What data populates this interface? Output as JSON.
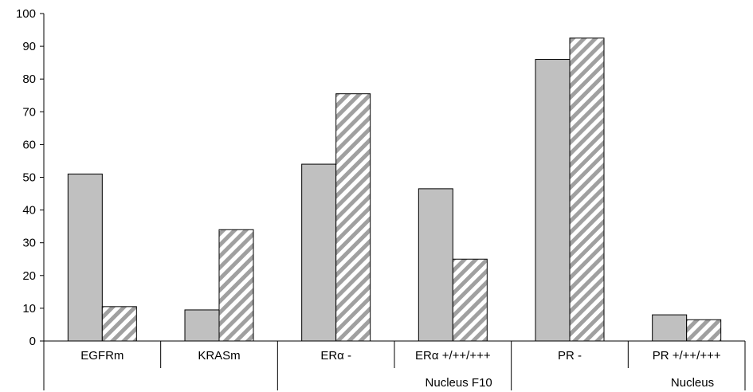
{
  "chart_data": {
    "type": "bar",
    "categories": [
      "EGFRm",
      "KRASm",
      "ERα -",
      "ERα +/++/+++",
      "PR -",
      "PR +/++/+++"
    ],
    "groups": [
      {
        "label": "",
        "categories": [
          "EGFRm",
          "KRASm"
        ]
      },
      {
        "label": "Nucleus F10",
        "categories": [
          "ERα -",
          "ERα +/++/+++"
        ]
      },
      {
        "label": "Nucleus",
        "categories": [
          "PR -",
          "PR +/++/+++"
        ]
      }
    ],
    "series": [
      {
        "values": [
          51,
          9.5,
          54,
          46.5,
          86,
          8
        ],
        "color": "#c0c0c0",
        "pattern": "solid"
      },
      {
        "values": [
          10.5,
          34,
          75.5,
          25,
          92.5,
          6.5
        ],
        "color": "#a0a0a0",
        "pattern": "diagonal-hatch"
      }
    ],
    "title": "",
    "xlabel": "",
    "ylabel": "",
    "ylim": [
      0,
      100
    ],
    "yticks": [
      "0",
      "10",
      "20",
      "30",
      "40",
      "50",
      "60",
      "70",
      "80",
      "90",
      "100"
    ],
    "legend": "none",
    "grid": false
  }
}
